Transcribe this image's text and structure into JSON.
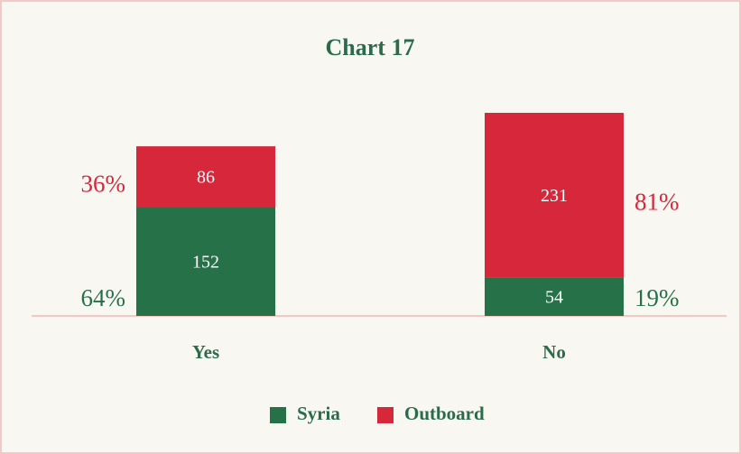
{
  "chart_data": {
    "type": "stacked_bar",
    "title": "Chart 17",
    "categories": [
      "Yes",
      "No"
    ],
    "series": [
      {
        "name": "Syria",
        "color": "#277148",
        "values": [
          152,
          54
        ],
        "share_labels": [
          "64%",
          "19%"
        ]
      },
      {
        "name": "Outboard",
        "color": "#d7283b",
        "values": [
          86,
          231
        ],
        "share_labels": [
          "36%",
          "81%"
        ]
      }
    ]
  }
}
